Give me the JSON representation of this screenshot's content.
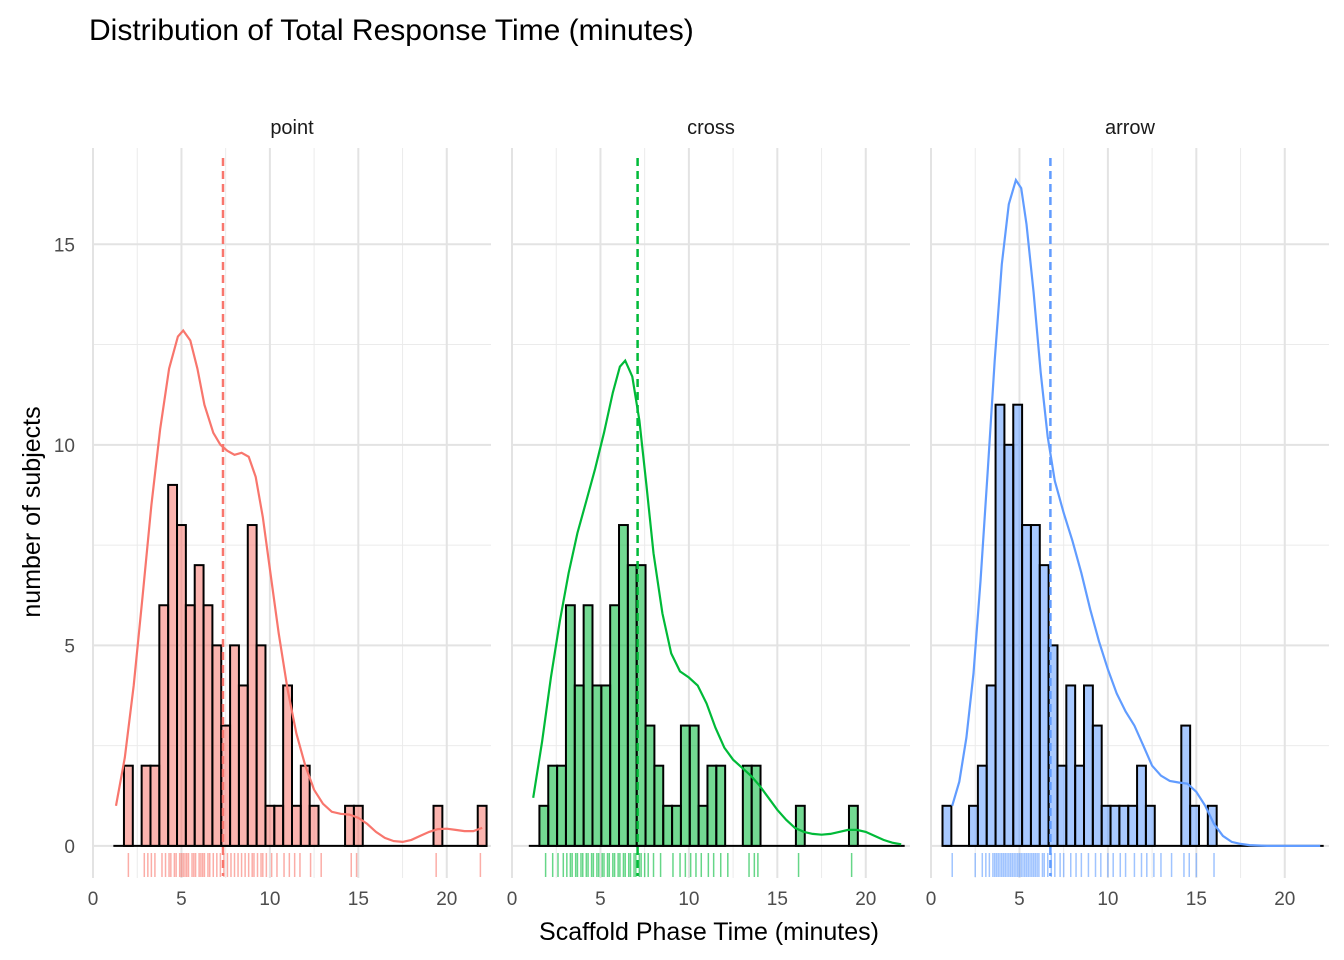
{
  "chart_data": {
    "type": "bar",
    "title": "Distribution of Total Response Time (minutes)",
    "xlabel": "Scaffold Phase Time (minutes)",
    "ylabel": "number of subjects",
    "xlim": [
      0,
      22.5
    ],
    "ylim": [
      -0.8,
      17.4
    ],
    "x_ticks": [
      0,
      5,
      10,
      15,
      20
    ],
    "y_ticks": [
      0,
      5,
      10,
      15
    ],
    "grid": true,
    "bin_width": 0.5,
    "panels": [
      {
        "name": "point",
        "color": "#F8766D",
        "mean": 7.35,
        "bars": [
          {
            "x": 2.0,
            "y": 2
          },
          {
            "x": 2.5,
            "y": 0
          },
          {
            "x": 3.0,
            "y": 2
          },
          {
            "x": 3.5,
            "y": 2
          },
          {
            "x": 4.0,
            "y": 6
          },
          {
            "x": 4.5,
            "y": 9
          },
          {
            "x": 5.0,
            "y": 8
          },
          {
            "x": 5.5,
            "y": 6
          },
          {
            "x": 6.0,
            "y": 7
          },
          {
            "x": 6.5,
            "y": 6
          },
          {
            "x": 7.0,
            "y": 5
          },
          {
            "x": 7.5,
            "y": 3
          },
          {
            "x": 8.0,
            "y": 5
          },
          {
            "x": 8.5,
            "y": 4
          },
          {
            "x": 9.0,
            "y": 8
          },
          {
            "x": 9.5,
            "y": 5
          },
          {
            "x": 10.0,
            "y": 1
          },
          {
            "x": 10.5,
            "y": 1
          },
          {
            "x": 11.0,
            "y": 4
          },
          {
            "x": 11.5,
            "y": 1
          },
          {
            "x": 12.0,
            "y": 2
          },
          {
            "x": 12.5,
            "y": 1
          },
          {
            "x": 13.0,
            "y": 0
          },
          {
            "x": 13.5,
            "y": 0
          },
          {
            "x": 14.0,
            "y": 0
          },
          {
            "x": 14.5,
            "y": 1
          },
          {
            "x": 15.0,
            "y": 1
          },
          {
            "x": 19.5,
            "y": 1
          },
          {
            "x": 22.0,
            "y": 1
          }
        ],
        "density": [
          [
            1.3,
            1.0
          ],
          [
            1.8,
            2.2
          ],
          [
            2.3,
            4.0
          ],
          [
            2.8,
            6.2
          ],
          [
            3.3,
            8.5
          ],
          [
            3.8,
            10.4
          ],
          [
            4.3,
            11.9
          ],
          [
            4.8,
            12.7
          ],
          [
            5.1,
            12.85
          ],
          [
            5.5,
            12.6
          ],
          [
            5.9,
            11.9
          ],
          [
            6.3,
            11.0
          ],
          [
            6.8,
            10.3
          ],
          [
            7.2,
            10.0
          ],
          [
            7.6,
            9.85
          ],
          [
            8.0,
            9.75
          ],
          [
            8.4,
            9.8
          ],
          [
            8.8,
            9.7
          ],
          [
            9.2,
            9.2
          ],
          [
            9.6,
            8.2
          ],
          [
            10.0,
            6.9
          ],
          [
            10.5,
            5.3
          ],
          [
            11.0,
            3.9
          ],
          [
            11.5,
            2.8
          ],
          [
            12.0,
            2.0
          ],
          [
            12.5,
            1.4
          ],
          [
            13.0,
            1.05
          ],
          [
            13.5,
            0.85
          ],
          [
            14.0,
            0.8
          ],
          [
            14.5,
            0.78
          ],
          [
            15.0,
            0.7
          ],
          [
            15.5,
            0.55
          ],
          [
            16.0,
            0.35
          ],
          [
            16.5,
            0.2
          ],
          [
            17.0,
            0.12
          ],
          [
            17.5,
            0.1
          ],
          [
            18.0,
            0.15
          ],
          [
            18.5,
            0.25
          ],
          [
            19.0,
            0.35
          ],
          [
            19.5,
            0.42
          ],
          [
            20.0,
            0.43
          ],
          [
            20.5,
            0.4
          ],
          [
            21.0,
            0.37
          ],
          [
            21.5,
            0.37
          ],
          [
            22.0,
            0.45
          ]
        ],
        "rug": [
          2.0,
          2.9,
          3.1,
          3.3,
          3.5,
          3.9,
          4.1,
          4.3,
          4.4,
          4.6,
          4.7,
          4.9,
          5.0,
          5.1,
          5.2,
          5.3,
          5.4,
          5.6,
          5.7,
          5.8,
          6.0,
          6.1,
          6.2,
          6.3,
          6.5,
          6.6,
          6.8,
          7.0,
          7.2,
          7.4,
          7.6,
          7.8,
          8.0,
          8.2,
          8.4,
          8.6,
          8.8,
          9.0,
          9.1,
          9.3,
          9.5,
          9.6,
          9.8,
          10.1,
          10.4,
          10.8,
          11.1,
          11.4,
          11.7,
          12.3,
          12.9,
          14.6,
          14.9,
          19.4,
          21.9
        ]
      },
      {
        "name": "cross",
        "color": "#00BA38",
        "mean": 7.1,
        "bars": [
          {
            "x": 1.8,
            "y": 1
          },
          {
            "x": 2.3,
            "y": 2
          },
          {
            "x": 2.8,
            "y": 2
          },
          {
            "x": 3.3,
            "y": 6
          },
          {
            "x": 3.8,
            "y": 4
          },
          {
            "x": 4.3,
            "y": 6
          },
          {
            "x": 4.8,
            "y": 4
          },
          {
            "x": 5.3,
            "y": 4
          },
          {
            "x": 5.8,
            "y": 6
          },
          {
            "x": 6.3,
            "y": 8
          },
          {
            "x": 6.8,
            "y": 7
          },
          {
            "x": 7.3,
            "y": 7
          },
          {
            "x": 7.8,
            "y": 3
          },
          {
            "x": 8.3,
            "y": 2
          },
          {
            "x": 8.8,
            "y": 1
          },
          {
            "x": 9.3,
            "y": 1
          },
          {
            "x": 9.8,
            "y": 3
          },
          {
            "x": 10.3,
            "y": 3
          },
          {
            "x": 10.8,
            "y": 1
          },
          {
            "x": 11.3,
            "y": 2
          },
          {
            "x": 11.8,
            "y": 2
          },
          {
            "x": 12.3,
            "y": 0
          },
          {
            "x": 12.8,
            "y": 0
          },
          {
            "x": 13.3,
            "y": 2
          },
          {
            "x": 13.8,
            "y": 2
          },
          {
            "x": 16.3,
            "y": 1
          },
          {
            "x": 19.3,
            "y": 1
          }
        ],
        "density": [
          [
            1.2,
            1.2
          ],
          [
            1.7,
            2.6
          ],
          [
            2.2,
            4.2
          ],
          [
            2.7,
            5.6
          ],
          [
            3.2,
            6.8
          ],
          [
            3.7,
            7.8
          ],
          [
            4.2,
            8.6
          ],
          [
            4.7,
            9.4
          ],
          [
            5.2,
            10.3
          ],
          [
            5.7,
            11.3
          ],
          [
            6.1,
            11.95
          ],
          [
            6.4,
            12.1
          ],
          [
            6.8,
            11.7
          ],
          [
            7.2,
            10.6
          ],
          [
            7.6,
            9.0
          ],
          [
            8.0,
            7.3
          ],
          [
            8.5,
            5.8
          ],
          [
            9.0,
            4.8
          ],
          [
            9.5,
            4.35
          ],
          [
            10.0,
            4.2
          ],
          [
            10.5,
            4.0
          ],
          [
            11.0,
            3.55
          ],
          [
            11.5,
            2.95
          ],
          [
            12.0,
            2.45
          ],
          [
            12.5,
            2.15
          ],
          [
            13.0,
            1.95
          ],
          [
            13.5,
            1.75
          ],
          [
            14.0,
            1.5
          ],
          [
            14.5,
            1.2
          ],
          [
            15.0,
            0.9
          ],
          [
            15.5,
            0.65
          ],
          [
            16.0,
            0.45
          ],
          [
            16.5,
            0.35
          ],
          [
            17.0,
            0.3
          ],
          [
            17.5,
            0.28
          ],
          [
            18.0,
            0.3
          ],
          [
            18.5,
            0.35
          ],
          [
            19.0,
            0.4
          ],
          [
            19.5,
            0.4
          ],
          [
            20.0,
            0.35
          ],
          [
            20.5,
            0.25
          ],
          [
            21.0,
            0.15
          ],
          [
            21.5,
            0.08
          ],
          [
            22.0,
            0.04
          ]
        ],
        "rug": [
          1.9,
          2.3,
          2.6,
          2.9,
          3.1,
          3.3,
          3.4,
          3.6,
          3.7,
          3.9,
          4.0,
          4.2,
          4.3,
          4.5,
          4.6,
          4.8,
          4.9,
          5.1,
          5.2,
          5.4,
          5.5,
          5.7,
          5.8,
          6.0,
          6.1,
          6.3,
          6.4,
          6.6,
          6.7,
          6.9,
          7.0,
          7.2,
          7.3,
          7.5,
          7.7,
          8.0,
          8.4,
          9.1,
          9.5,
          9.8,
          10.1,
          10.4,
          10.7,
          11.1,
          11.4,
          11.8,
          12.2,
          13.4,
          13.7,
          13.9,
          16.2,
          19.2
        ]
      },
      {
        "name": "arrow",
        "color": "#619CFF",
        "mean": 6.75,
        "bars": [
          {
            "x": 0.9,
            "y": 1
          },
          {
            "x": 1.4,
            "y": 0
          },
          {
            "x": 1.9,
            "y": 0
          },
          {
            "x": 2.4,
            "y": 1
          },
          {
            "x": 2.9,
            "y": 2
          },
          {
            "x": 3.4,
            "y": 4
          },
          {
            "x": 3.9,
            "y": 11
          },
          {
            "x": 4.4,
            "y": 10
          },
          {
            "x": 4.9,
            "y": 11
          },
          {
            "x": 5.4,
            "y": 8
          },
          {
            "x": 5.9,
            "y": 8
          },
          {
            "x": 6.4,
            "y": 7
          },
          {
            "x": 6.9,
            "y": 5
          },
          {
            "x": 7.4,
            "y": 2
          },
          {
            "x": 7.9,
            "y": 4
          },
          {
            "x": 8.4,
            "y": 2
          },
          {
            "x": 8.9,
            "y": 4
          },
          {
            "x": 9.4,
            "y": 3
          },
          {
            "x": 9.9,
            "y": 1
          },
          {
            "x": 10.4,
            "y": 1
          },
          {
            "x": 10.9,
            "y": 1
          },
          {
            "x": 11.4,
            "y": 1
          },
          {
            "x": 11.9,
            "y": 2
          },
          {
            "x": 12.4,
            "y": 1
          },
          {
            "x": 12.9,
            "y": 0
          },
          {
            "x": 13.4,
            "y": 0
          },
          {
            "x": 13.9,
            "y": 0
          },
          {
            "x": 14.4,
            "y": 3
          },
          {
            "x": 14.9,
            "y": 1
          },
          {
            "x": 15.4,
            "y": 0
          },
          {
            "x": 15.9,
            "y": 1
          }
        ],
        "density": [
          [
            1.2,
            1.0
          ],
          [
            1.6,
            1.6
          ],
          [
            2.0,
            2.7
          ],
          [
            2.4,
            4.3
          ],
          [
            2.8,
            6.6
          ],
          [
            3.2,
            9.3
          ],
          [
            3.6,
            12.1
          ],
          [
            4.0,
            14.5
          ],
          [
            4.4,
            16.0
          ],
          [
            4.8,
            16.6
          ],
          [
            5.1,
            16.4
          ],
          [
            5.4,
            15.5
          ],
          [
            5.8,
            13.8
          ],
          [
            6.2,
            11.8
          ],
          [
            6.6,
            10.2
          ],
          [
            7.0,
            9.1
          ],
          [
            7.5,
            8.3
          ],
          [
            8.0,
            7.6
          ],
          [
            8.5,
            6.8
          ],
          [
            9.0,
            5.9
          ],
          [
            9.5,
            5.1
          ],
          [
            10.0,
            4.4
          ],
          [
            10.5,
            3.8
          ],
          [
            11.0,
            3.35
          ],
          [
            11.5,
            3.0
          ],
          [
            12.0,
            2.5
          ],
          [
            12.5,
            2.0
          ],
          [
            13.0,
            1.75
          ],
          [
            13.5,
            1.62
          ],
          [
            14.0,
            1.58
          ],
          [
            14.5,
            1.55
          ],
          [
            15.0,
            1.35
          ],
          [
            15.5,
            1.0
          ],
          [
            16.0,
            0.55
          ],
          [
            16.5,
            0.25
          ],
          [
            17.0,
            0.1
          ],
          [
            17.5,
            0.05
          ],
          [
            18.0,
            0.02
          ],
          [
            18.5,
            0.01
          ],
          [
            19.0,
            0.0
          ],
          [
            20.0,
            0.0
          ],
          [
            21.0,
            0.0
          ],
          [
            22.0,
            0.0
          ]
        ],
        "rug": [
          1.2,
          2.5,
          2.9,
          3.1,
          3.3,
          3.5,
          3.6,
          3.7,
          3.8,
          3.9,
          4.0,
          4.1,
          4.2,
          4.3,
          4.4,
          4.5,
          4.6,
          4.7,
          4.8,
          4.9,
          5.0,
          5.1,
          5.2,
          5.3,
          5.4,
          5.5,
          5.6,
          5.7,
          5.8,
          5.9,
          6.0,
          6.1,
          6.3,
          6.4,
          6.6,
          6.8,
          7.0,
          7.3,
          7.5,
          7.9,
          8.2,
          8.5,
          8.9,
          9.3,
          9.6,
          10.0,
          10.3,
          10.7,
          11.0,
          11.5,
          11.9,
          12.2,
          12.6,
          13.0,
          13.6,
          14.3,
          14.6,
          15.0,
          16.0
        ]
      }
    ]
  }
}
